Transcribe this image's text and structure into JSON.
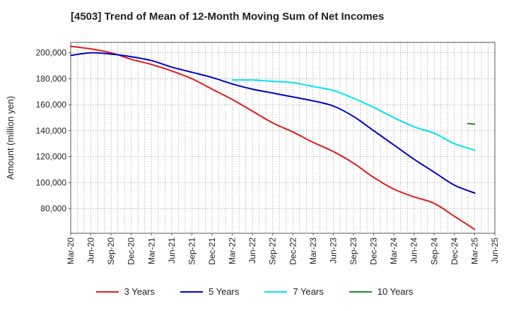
{
  "title": "[4503]  Trend of Mean of 12-Month Moving Sum of Net Incomes",
  "chart_data": {
    "type": "line",
    "title": "[4503]  Trend of Mean of 12-Month Moving Sum of Net Incomes",
    "xlabel": "",
    "ylabel": "Amount (million yen)",
    "x_ticks": [
      "Mar-20",
      "Jun-20",
      "Sep-20",
      "Dec-20",
      "Mar-21",
      "Jun-21",
      "Sep-21",
      "Dec-21",
      "Mar-22",
      "Jun-22",
      "Sep-22",
      "Dec-22",
      "Mar-23",
      "Jun-23",
      "Sep-23",
      "Dec-23",
      "Mar-24",
      "Jun-24",
      "Sep-24",
      "Dec-24",
      "Mar-25",
      "Jun-25"
    ],
    "y_ticks": [
      80000,
      100000,
      120000,
      140000,
      160000,
      180000,
      200000
    ],
    "y_tick_labels": [
      "80,000",
      "100,000",
      "120,000",
      "140,000",
      "160,000",
      "180,000",
      "200,000"
    ],
    "ylim": [
      61000,
      208000
    ],
    "xlim": [
      "Mar-20",
      "Jun-25"
    ],
    "grid": true,
    "legend_position": "bottom",
    "series": [
      {
        "name": "3 Years",
        "color": "#e31a1c",
        "points": [
          [
            "Mar-20",
            205000
          ],
          [
            "Jun-20",
            203000
          ],
          [
            "Sep-20",
            200000
          ],
          [
            "Dec-20",
            195000
          ],
          [
            "Mar-21",
            191000
          ],
          [
            "Jun-21",
            186000
          ],
          [
            "Sep-21",
            180000
          ],
          [
            "Dec-21",
            172000
          ],
          [
            "Mar-22",
            164000
          ],
          [
            "Jun-22",
            155000
          ],
          [
            "Sep-22",
            146000
          ],
          [
            "Dec-22",
            139000
          ],
          [
            "Mar-23",
            131000
          ],
          [
            "Jun-23",
            124000
          ],
          [
            "Sep-23",
            115000
          ],
          [
            "Dec-23",
            104000
          ],
          [
            "Mar-24",
            95000
          ],
          [
            "Jun-24",
            89000
          ],
          [
            "Sep-24",
            84000
          ],
          [
            "Dec-24",
            74000
          ],
          [
            "Mar-25",
            64000
          ]
        ]
      },
      {
        "name": "5 Years",
        "color": "#0000cc",
        "points": [
          [
            "Mar-20",
            198000
          ],
          [
            "Jun-20",
            200000
          ],
          [
            "Sep-20",
            199000
          ],
          [
            "Dec-20",
            197000
          ],
          [
            "Mar-21",
            194000
          ],
          [
            "Jun-21",
            189000
          ],
          [
            "Sep-21",
            185000
          ],
          [
            "Dec-21",
            181000
          ],
          [
            "Mar-22",
            176000
          ],
          [
            "Jun-22",
            172000
          ],
          [
            "Sep-22",
            169000
          ],
          [
            "Dec-22",
            166000
          ],
          [
            "Mar-23",
            163000
          ],
          [
            "Jun-23",
            159000
          ],
          [
            "Sep-23",
            151000
          ],
          [
            "Dec-23",
            140000
          ],
          [
            "Mar-24",
            129000
          ],
          [
            "Jun-24",
            118000
          ],
          [
            "Sep-24",
            108000
          ],
          [
            "Dec-24",
            98000
          ],
          [
            "Mar-25",
            92000
          ]
        ]
      },
      {
        "name": "7 Years",
        "color": "#00e5ee",
        "points": [
          [
            "Mar-22",
            179000
          ],
          [
            "Jun-22",
            179000
          ],
          [
            "Sep-22",
            178000
          ],
          [
            "Dec-22",
            177000
          ],
          [
            "Mar-23",
            174000
          ],
          [
            "Jun-23",
            171000
          ],
          [
            "Sep-23",
            165000
          ],
          [
            "Dec-23",
            158000
          ],
          [
            "Mar-24",
            150000
          ],
          [
            "Jun-24",
            143000
          ],
          [
            "Sep-24",
            138000
          ],
          [
            "Dec-24",
            130000
          ],
          [
            "Mar-25",
            125000
          ]
        ]
      },
      {
        "name": "10 Years",
        "color": "#228b22",
        "points": [
          [
            "Feb-25",
            145500
          ],
          [
            "Mar-25",
            145000
          ]
        ]
      }
    ]
  }
}
